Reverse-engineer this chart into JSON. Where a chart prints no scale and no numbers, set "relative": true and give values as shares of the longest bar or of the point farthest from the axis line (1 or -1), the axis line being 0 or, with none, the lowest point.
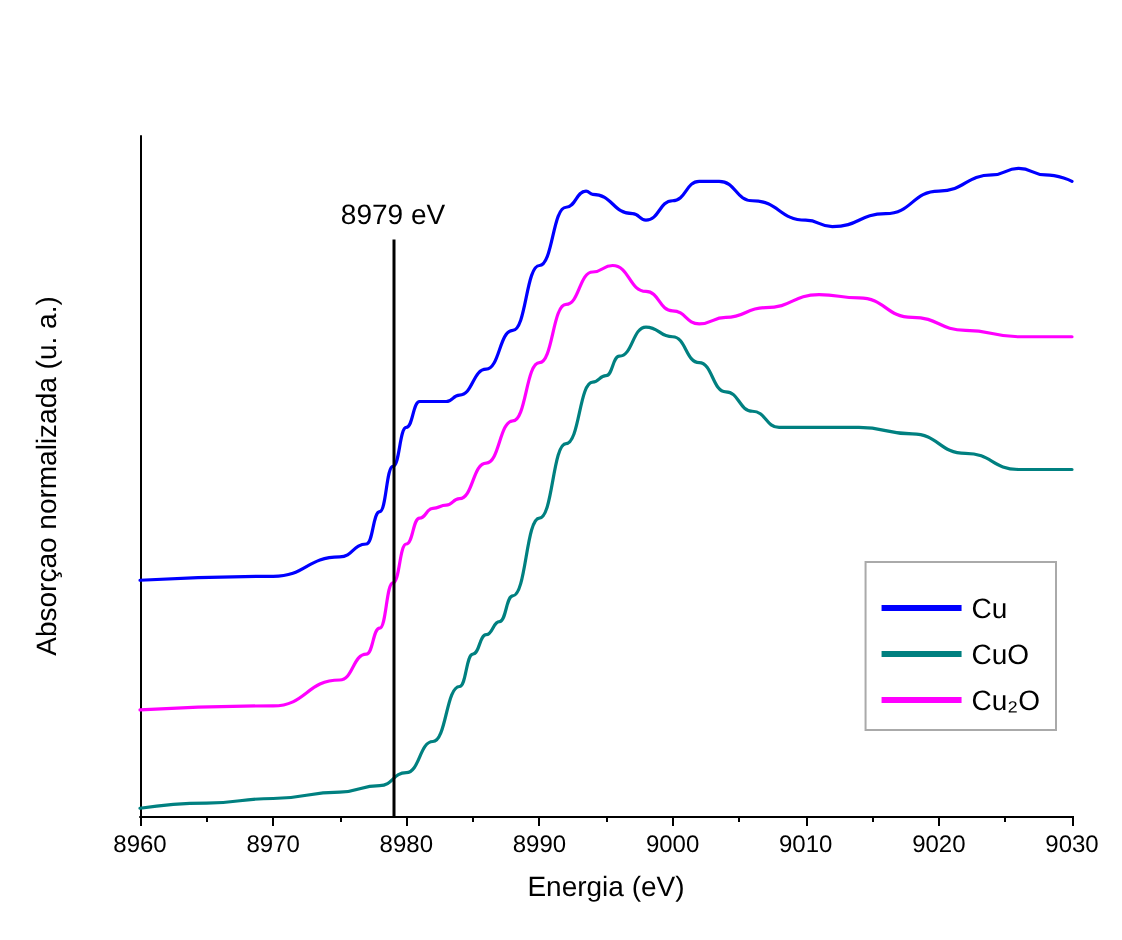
{
  "chart_data": {
    "type": "line",
    "xlabel": "Energia (eV)",
    "ylabel": "Absorçao normalizada (u. a.)",
    "relative": true,
    "xlim": [
      8960,
      9030
    ],
    "xticks": [
      8960,
      8970,
      8980,
      8990,
      9000,
      9010,
      9020,
      9030
    ],
    "grid": false,
    "legend": "right",
    "marker": "none",
    "line_style": "solid",
    "ref_lines": [
      {
        "axis": "x",
        "value": 8979,
        "label": "8979 eV",
        "color": "#000000"
      }
    ],
    "series": [
      {
        "name": "Cu",
        "color": "#0000ff",
        "x": [
          8960,
          8970,
          8975,
          8977,
          8978,
          8979,
          8980,
          8981,
          8982,
          8983,
          8984,
          8986,
          8988,
          8990,
          8992,
          8993.5,
          8994,
          8997,
          8998,
          9000,
          9002,
          9003.5,
          9006,
          9010,
          9012,
          9016,
          9020,
          9024,
          9026,
          9028,
          9030
        ],
        "values": [
          0.364,
          0.37,
          0.4,
          0.42,
          0.47,
          0.54,
          0.6,
          0.64,
          0.64,
          0.64,
          0.65,
          0.69,
          0.75,
          0.85,
          0.94,
          0.965,
          0.96,
          0.93,
          0.92,
          0.95,
          0.98,
          0.98,
          0.95,
          0.92,
          0.91,
          0.93,
          0.965,
          0.99,
          1,
          0.99,
          0.98
        ]
      },
      {
        "name": "CuO",
        "color": "#008080",
        "x": [
          8960,
          8965,
          8970,
          8975,
          8978,
          8980,
          8982,
          8984,
          8985,
          8986,
          8987,
          8988,
          8990,
          8992,
          8994,
          8995,
          8996,
          8998,
          9000,
          9002,
          9004,
          9006,
          9008,
          9011,
          9014,
          9018,
          9022,
          9026,
          9030
        ],
        "values": [
          0.012,
          0.02,
          0.027,
          0.037,
          0.047,
          0.067,
          0.115,
          0.2,
          0.25,
          0.28,
          0.3,
          0.34,
          0.46,
          0.575,
          0.67,
          0.68,
          0.71,
          0.755,
          0.74,
          0.7,
          0.655,
          0.625,
          0.6,
          0.6,
          0.6,
          0.59,
          0.56,
          0.535,
          0.535
        ]
      },
      {
        "name": "Cu₂O",
        "color": "#ff00ff",
        "x": [
          8960,
          8970,
          8975,
          8977,
          8978,
          8979,
          8980,
          8981,
          8982,
          8983,
          8984,
          8986,
          8988,
          8990,
          8992,
          8994,
          8995.5,
          8998,
          9000,
          9002,
          9004,
          9007,
          9011,
          9014,
          9018,
          9022,
          9026,
          9030
        ],
        "values": [
          0.164,
          0.17,
          0.21,
          0.25,
          0.29,
          0.36,
          0.42,
          0.46,
          0.475,
          0.48,
          0.49,
          0.545,
          0.61,
          0.7,
          0.79,
          0.84,
          0.85,
          0.81,
          0.78,
          0.76,
          0.77,
          0.785,
          0.805,
          0.8,
          0.77,
          0.75,
          0.74,
          0.74
        ]
      }
    ]
  }
}
